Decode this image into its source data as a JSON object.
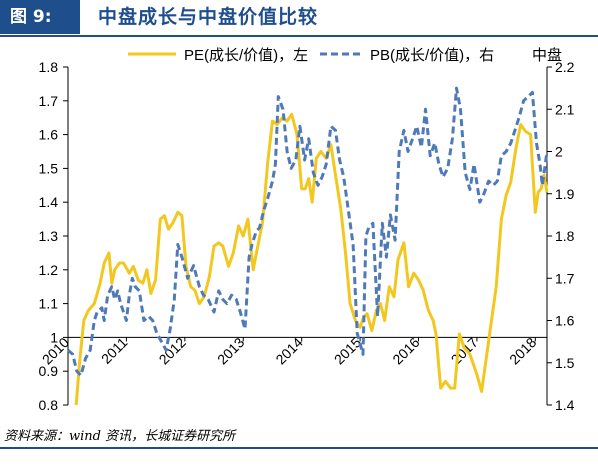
{
  "figure": {
    "tag": "图 9:",
    "title": "中盘成长与中盘价值比较",
    "source": "资料来源：wind 资讯，长城证券研究所"
  },
  "colors": {
    "pe_line": "#f2c820",
    "pb_line": "#4f7ab8",
    "title_blue": "#1f4e8c",
    "axis": "#000000"
  },
  "chart_data": {
    "type": "line",
    "x_label_text": [
      "2010",
      "2011",
      "2012",
      "2013",
      "2014",
      "2015",
      "2016",
      "2017",
      "2018"
    ],
    "x_ticks_year": [
      2010.0,
      2011.0,
      2012.0,
      2013.0,
      2014.0,
      2015.0,
      2016.0,
      2017.0,
      2018.0
    ],
    "xlim": [
      2010.0,
      2018.2
    ],
    "ylim_left": [
      0.8,
      1.8
    ],
    "yticks_left": [
      "0.8",
      "0.9",
      "1",
      "1.1",
      "1.2",
      "1.3",
      "1.4",
      "1.5",
      "1.6",
      "1.7",
      "1.8"
    ],
    "ylim_right": [
      1.4,
      2.2
    ],
    "yticks_right": [
      "1.4",
      "1.5",
      "1.6",
      "1.7",
      "1.8",
      "1.9",
      "2",
      "2.1",
      "2.2"
    ],
    "legend_placement": "top",
    "legend_extra_text": "中盘",
    "grid": false,
    "series": [
      {
        "name": "PE(成长/价值)，左",
        "axis": "left",
        "style": "solid",
        "x": [
          2010.14,
          2010.2,
          2010.27,
          2010.35,
          2010.45,
          2010.55,
          2010.62,
          2010.7,
          2010.75,
          2010.8,
          2010.88,
          2010.95,
          2011.05,
          2011.12,
          2011.2,
          2011.28,
          2011.35,
          2011.42,
          2011.5,
          2011.58,
          2011.65,
          2011.72,
          2011.8,
          2011.88,
          2011.95,
          2012.02,
          2012.1,
          2012.17,
          2012.25,
          2012.33,
          2012.42,
          2012.5,
          2012.58,
          2012.65,
          2012.75,
          2012.83,
          2012.92,
          2013.0,
          2013.08,
          2013.17,
          2013.25,
          2013.33,
          2013.42,
          2013.5,
          2013.58,
          2013.67,
          2013.75,
          2013.83,
          2013.92,
          2014.0,
          2014.06,
          2014.12,
          2014.18,
          2014.25,
          2014.33,
          2014.42,
          2014.5,
          2014.58,
          2014.67,
          2014.75,
          2014.83,
          2014.92,
          2015.0,
          2015.06,
          2015.12,
          2015.2,
          2015.28,
          2015.35,
          2015.42,
          2015.5,
          2015.58,
          2015.65,
          2015.75,
          2015.83,
          2015.92,
          2016.0,
          2016.08,
          2016.17,
          2016.25,
          2016.3,
          2016.38,
          2016.46,
          2016.55,
          2016.62,
          2016.7,
          2016.78,
          2016.88,
          2017.0,
          2017.08,
          2017.17,
          2017.25,
          2017.33,
          2017.42,
          2017.5,
          2017.58,
          2017.67,
          2017.75,
          2017.83,
          2017.92,
          2018.0,
          2018.05,
          2018.1,
          2018.15,
          2018.2
        ],
        "y": [
          0.8,
          0.93,
          1.05,
          1.08,
          1.1,
          1.16,
          1.22,
          1.25,
          1.16,
          1.2,
          1.22,
          1.22,
          1.19,
          1.21,
          1.17,
          1.16,
          1.2,
          1.13,
          1.17,
          1.35,
          1.36,
          1.32,
          1.34,
          1.37,
          1.36,
          1.21,
          1.15,
          1.14,
          1.1,
          1.12,
          1.18,
          1.27,
          1.28,
          1.27,
          1.21,
          1.25,
          1.33,
          1.3,
          1.35,
          1.2,
          1.27,
          1.34,
          1.52,
          1.64,
          1.63,
          1.65,
          1.64,
          1.66,
          1.6,
          1.44,
          1.44,
          1.47,
          1.4,
          1.53,
          1.55,
          1.53,
          1.57,
          1.48,
          1.38,
          1.25,
          1.1,
          1.05,
          1.03,
          1.06,
          1.07,
          1.02,
          1.08,
          1.1,
          1.05,
          1.15,
          1.12,
          1.23,
          1.28,
          1.15,
          1.19,
          1.17,
          1.14,
          1.08,
          1.05,
          1.01,
          0.85,
          0.87,
          0.85,
          0.85,
          1.01,
          0.97,
          0.95,
          0.89,
          0.84,
          0.95,
          1.05,
          1.15,
          1.35,
          1.42,
          1.46,
          1.56,
          1.63,
          1.61,
          1.6,
          1.37,
          1.43,
          1.44,
          1.48,
          1.43
        ]
      },
      {
        "name": "PB(成长/价值)，右",
        "axis": "right",
        "style": "dashed",
        "x": [
          2010.0,
          2010.08,
          2010.15,
          2010.22,
          2010.3,
          2010.38,
          2010.45,
          2010.5,
          2010.58,
          2010.62,
          2010.68,
          2010.75,
          2010.8,
          2010.85,
          2010.9,
          2010.95,
          2011.0,
          2011.05,
          2011.1,
          2011.15,
          2011.22,
          2011.3,
          2011.38,
          2011.45,
          2011.52,
          2011.6,
          2011.68,
          2011.75,
          2011.82,
          2011.88,
          2011.95,
          2012.05,
          2012.15,
          2012.25,
          2012.32,
          2012.4,
          2012.5,
          2012.58,
          2012.65,
          2012.72,
          2012.8,
          2012.88,
          2012.95,
          2013.03,
          2013.1,
          2013.15,
          2013.22,
          2013.28,
          2013.35,
          2013.42,
          2013.5,
          2013.55,
          2013.6,
          2013.68,
          2013.75,
          2013.82,
          2013.9,
          2013.97,
          2014.05,
          2014.12,
          2014.2,
          2014.28,
          2014.35,
          2014.42,
          2014.5,
          2014.58,
          2014.65,
          2014.72,
          2014.8,
          2014.88,
          2014.95,
          2015.05,
          2015.1,
          2015.15,
          2015.22,
          2015.3,
          2015.38,
          2015.45,
          2015.52,
          2015.6,
          2015.67,
          2015.75,
          2015.82,
          2015.9,
          2015.97,
          2016.05,
          2016.12,
          2016.2,
          2016.28,
          2016.35,
          2016.42,
          2016.5,
          2016.58,
          2016.65,
          2016.72,
          2016.8,
          2016.88,
          2016.95,
          2017.05,
          2017.12,
          2017.2,
          2017.28,
          2017.35,
          2017.42,
          2017.5,
          2017.58,
          2017.65,
          2017.72,
          2017.8,
          2017.88,
          2017.95,
          2018.02,
          2018.08,
          2018.12,
          2018.16,
          2018.2
        ],
        "y": [
          1.53,
          1.52,
          1.48,
          1.47,
          1.51,
          1.53,
          1.6,
          1.62,
          1.63,
          1.6,
          1.66,
          1.68,
          1.65,
          1.67,
          1.64,
          1.62,
          1.6,
          1.66,
          1.7,
          1.68,
          1.67,
          1.6,
          1.61,
          1.6,
          1.57,
          1.55,
          1.53,
          1.58,
          1.65,
          1.78,
          1.75,
          1.7,
          1.73,
          1.68,
          1.66,
          1.65,
          1.62,
          1.67,
          1.65,
          1.64,
          1.66,
          1.65,
          1.62,
          1.58,
          1.75,
          1.78,
          1.81,
          1.82,
          1.86,
          1.89,
          1.93,
          1.97,
          2.13,
          2.1,
          2.0,
          1.96,
          1.98,
          2.06,
          1.98,
          2.03,
          1.95,
          1.92,
          1.94,
          1.97,
          2.06,
          2.05,
          1.98,
          1.94,
          1.86,
          1.78,
          1.57,
          1.52,
          1.8,
          1.82,
          1.83,
          1.61,
          1.83,
          1.75,
          1.85,
          1.79,
          2.0,
          2.05,
          2.0,
          2.03,
          2.06,
          2.01,
          2.1,
          1.99,
          2.02,
          1.97,
          1.94,
          1.96,
          2.03,
          2.15,
          2.1,
          1.95,
          1.91,
          1.97,
          1.88,
          1.9,
          1.93,
          1.92,
          1.93,
          1.99,
          2.0,
          2.02,
          2.05,
          2.08,
          2.12,
          2.13,
          2.14,
          2.02,
          1.97,
          1.92,
          1.96,
          2.0
        ]
      }
    ]
  }
}
